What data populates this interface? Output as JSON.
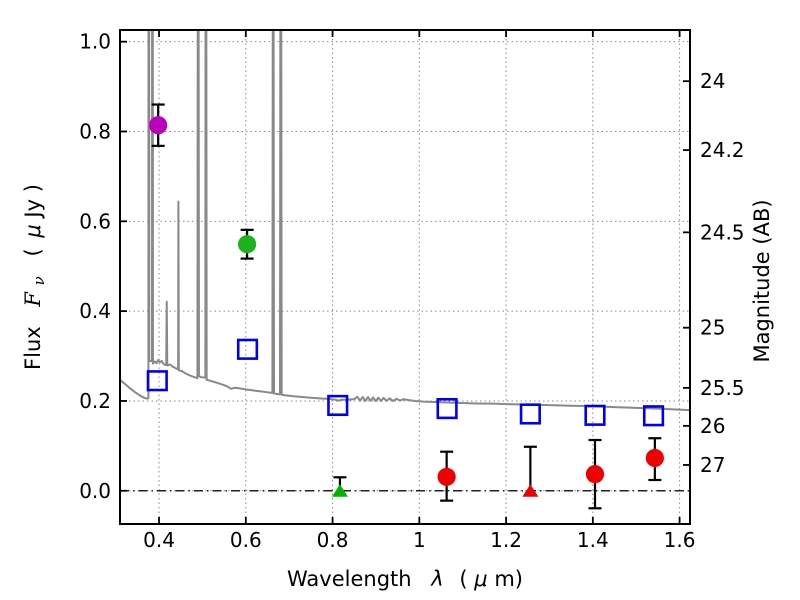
{
  "chart_data": {
    "type": "scatter",
    "title": "",
    "xlabel": "Wavelength λ (μm)",
    "ylabel_left": "Flux Fν ( μJy )",
    "ylabel_right": "Magnitude (AB)",
    "xlim": [
      0.31,
      1.624
    ],
    "ylim_flux": [
      -0.074,
      1.026
    ],
    "grid": true,
    "grid_style": "dotted",
    "x_ticks": [
      {
        "value": 0.4,
        "label": "0.4"
      },
      {
        "value": 0.6,
        "label": "0.6"
      },
      {
        "value": 0.8,
        "label": "0.8"
      },
      {
        "value": 1.0,
        "label": "1"
      },
      {
        "value": 1.2,
        "label": "1.2"
      },
      {
        "value": 1.4,
        "label": "1.4"
      },
      {
        "value": 1.6,
        "label": "1.6"
      }
    ],
    "y_ticks_left": [
      {
        "value": 0.0,
        "label": "0.0"
      },
      {
        "value": 0.2,
        "label": "0.2"
      },
      {
        "value": 0.4,
        "label": "0.4"
      },
      {
        "value": 0.6,
        "label": "0.6"
      },
      {
        "value": 0.8,
        "label": "0.8"
      },
      {
        "value": 1.0,
        "label": "1.0"
      }
    ],
    "y_ticks_right_mag": [
      {
        "label": "24",
        "flux": 0.912
      },
      {
        "label": "24.2",
        "flux": 0.7586
      },
      {
        "label": "24.5",
        "flux": 0.5754
      },
      {
        "label": "25",
        "flux": 0.3631
      },
      {
        "label": "25.5",
        "flux": 0.2291
      },
      {
        "label": "26",
        "flux": 0.1445
      },
      {
        "label": "27",
        "flux": 0.0575
      }
    ],
    "zero_flux_line": {
      "flux": 0.0,
      "style": "dash-dot",
      "color": "#222222"
    },
    "spectrum": {
      "name": "model-spectrum",
      "color": "#898989",
      "linewidth": 2,
      "points": [
        [
          0.31,
          0.247
        ],
        [
          0.32,
          0.239
        ],
        [
          0.332,
          0.229
        ],
        [
          0.344,
          0.22
        ],
        [
          0.356,
          0.212
        ],
        [
          0.366,
          0.207
        ],
        [
          0.373,
          0.205
        ],
        [
          0.3755,
          0.206
        ],
        [
          0.3757,
          1.1
        ],
        [
          0.3772,
          1.1
        ],
        [
          0.3775,
          0.29
        ],
        [
          0.3838,
          0.288
        ],
        [
          0.384,
          1.1
        ],
        [
          0.3856,
          1.1
        ],
        [
          0.386,
          0.283
        ],
        [
          0.39,
          0.288
        ],
        [
          0.394,
          0.284
        ],
        [
          0.398,
          0.291
        ],
        [
          0.402,
          0.286
        ],
        [
          0.406,
          0.289
        ],
        [
          0.41,
          0.283
        ],
        [
          0.4145,
          0.28
        ],
        [
          0.4165,
          0.28
        ],
        [
          0.4177,
          0.421
        ],
        [
          0.419,
          0.279
        ],
        [
          0.426,
          0.281
        ],
        [
          0.432,
          0.276
        ],
        [
          0.438,
          0.273
        ],
        [
          0.4425,
          0.271
        ],
        [
          0.444,
          0.272
        ],
        [
          0.4446,
          0.644
        ],
        [
          0.4455,
          0.268
        ],
        [
          0.452,
          0.267
        ],
        [
          0.46,
          0.262
        ],
        [
          0.468,
          0.258
        ],
        [
          0.476,
          0.255
        ],
        [
          0.484,
          0.252
        ],
        [
          0.4885,
          0.251
        ],
        [
          0.4893,
          1.1
        ],
        [
          0.4912,
          1.1
        ],
        [
          0.492,
          0.256
        ],
        [
          0.496,
          0.253
        ],
        [
          0.5068,
          0.252
        ],
        [
          0.5072,
          1.1
        ],
        [
          0.509,
          1.1
        ],
        [
          0.5098,
          0.247
        ],
        [
          0.518,
          0.245
        ],
        [
          0.528,
          0.242
        ],
        [
          0.538,
          0.239
        ],
        [
          0.548,
          0.236
        ],
        [
          0.558,
          0.232
        ],
        [
          0.5635,
          0.2285
        ],
        [
          0.567,
          0.227
        ],
        [
          0.5745,
          0.2295
        ],
        [
          0.586,
          0.228
        ],
        [
          0.598,
          0.226
        ],
        [
          0.61,
          0.2243
        ],
        [
          0.622,
          0.2228
        ],
        [
          0.634,
          0.2213
        ],
        [
          0.646,
          0.2198
        ],
        [
          0.658,
          0.2183
        ],
        [
          0.6613,
          0.2178
        ],
        [
          0.6622,
          1.1
        ],
        [
          0.664,
          1.1
        ],
        [
          0.665,
          0.2165
        ],
        [
          0.672,
          0.2155
        ],
        [
          0.6788,
          0.2147
        ],
        [
          0.6797,
          1.1
        ],
        [
          0.6817,
          1.1
        ],
        [
          0.6827,
          0.2138
        ],
        [
          0.69,
          0.2127
        ],
        [
          0.702,
          0.2113
        ],
        [
          0.716,
          0.2099
        ],
        [
          0.73,
          0.2087
        ],
        [
          0.746,
          0.2075
        ],
        [
          0.762,
          0.2063
        ],
        [
          0.778,
          0.2053
        ],
        [
          0.794,
          0.2045
        ],
        [
          0.806,
          0.2028
        ],
        [
          0.8135,
          0.2007
        ],
        [
          0.8215,
          0.2027
        ],
        [
          0.836,
          0.203
        ],
        [
          0.85,
          0.204
        ],
        [
          0.857,
          0.2093
        ],
        [
          0.8635,
          0.2007
        ],
        [
          0.8695,
          0.209
        ],
        [
          0.8755,
          0.2
        ],
        [
          0.8815,
          0.2085
        ],
        [
          0.8875,
          0.2002
        ],
        [
          0.8935,
          0.2078
        ],
        [
          0.8995,
          0.1998
        ],
        [
          0.9055,
          0.2073
        ],
        [
          0.9115,
          0.1998
        ],
        [
          0.9175,
          0.2066
        ],
        [
          0.9245,
          0.2002
        ],
        [
          0.9315,
          0.2058
        ],
        [
          0.9395,
          0.2
        ],
        [
          0.9475,
          0.2048
        ],
        [
          0.9555,
          0.2008
        ],
        [
          0.9635,
          0.2038
        ],
        [
          0.976,
          0.2018
        ],
        [
          0.99,
          0.2
        ],
        [
          1.01,
          0.1985
        ],
        [
          1.05,
          0.197
        ],
        [
          1.09,
          0.1956
        ],
        [
          1.13,
          0.1944
        ],
        [
          1.17,
          0.194
        ],
        [
          1.2,
          0.193
        ],
        [
          1.25,
          0.1918
        ],
        [
          1.3,
          0.1906
        ],
        [
          1.35,
          0.1894
        ],
        [
          1.4,
          0.1884
        ],
        [
          1.45,
          0.1862
        ],
        [
          1.5,
          0.1845
        ],
        [
          1.54,
          0.1832
        ],
        [
          1.58,
          0.1815
        ],
        [
          1.624,
          0.1795
        ]
      ]
    },
    "photometry": [
      {
        "name": "blue-open-squares",
        "marker": "square-open",
        "color": "#0000ee",
        "points": [
          {
            "x": 0.396,
            "y": 0.245
          },
          {
            "x": 0.604,
            "y": 0.315
          },
          {
            "x": 0.812,
            "y": 0.19
          },
          {
            "x": 1.064,
            "y": 0.183
          },
          {
            "x": 1.256,
            "y": 0.171
          },
          {
            "x": 1.405,
            "y": 0.168
          },
          {
            "x": 1.54,
            "y": 0.167
          }
        ]
      },
      {
        "name": "magenta-circle",
        "marker": "circle",
        "color": "#bb00bb",
        "points": [
          {
            "x": 0.398,
            "y": 0.814,
            "err_up": 0.046,
            "err_down": 0.046
          }
        ]
      },
      {
        "name": "green-circle",
        "marker": "circle",
        "color": "#1cb21c",
        "points": [
          {
            "x": 0.603,
            "y": 0.549,
            "err_up": 0.032,
            "err_down": 0.032
          }
        ]
      },
      {
        "name": "green-upper-limit-triangle",
        "marker": "triangle-up",
        "color": "#00b400",
        "points": [
          {
            "x": 0.817,
            "y": 0.0,
            "err_up": 0.03,
            "err_down": 0
          }
        ]
      },
      {
        "name": "red-circles",
        "marker": "circle",
        "color": "#ee0000",
        "points": [
          {
            "x": 1.063,
            "y": 0.031,
            "err_up": 0.056,
            "err_down": 0.053
          },
          {
            "x": 1.405,
            "y": 0.037,
            "err_up": 0.076,
            "err_down": 0.076
          },
          {
            "x": 1.543,
            "y": 0.073,
            "err_up": 0.044,
            "err_down": 0.049
          }
        ]
      },
      {
        "name": "red-upper-limit-triangle",
        "marker": "triangle-up",
        "color": "#ee0000",
        "points": [
          {
            "x": 1.256,
            "y": 0.0,
            "err_up": 0.098,
            "err_down": 0
          }
        ]
      }
    ],
    "labels": {
      "xlabel_word": "Wavelength",
      "xlabel_lambda": "λ",
      "xlabel_unit_open": "(",
      "xlabel_mu": "μ",
      "xlabel_unit_close": "m)",
      "ylabel_word": "Flux",
      "ylabel_F": "F",
      "ylabel_nu": "ν",
      "ylabel_unit_open": "(",
      "ylabel_mu": "μ",
      "ylabel_unit_close": "Jy )",
      "ylabel_right": "Magnitude (AB)"
    }
  }
}
